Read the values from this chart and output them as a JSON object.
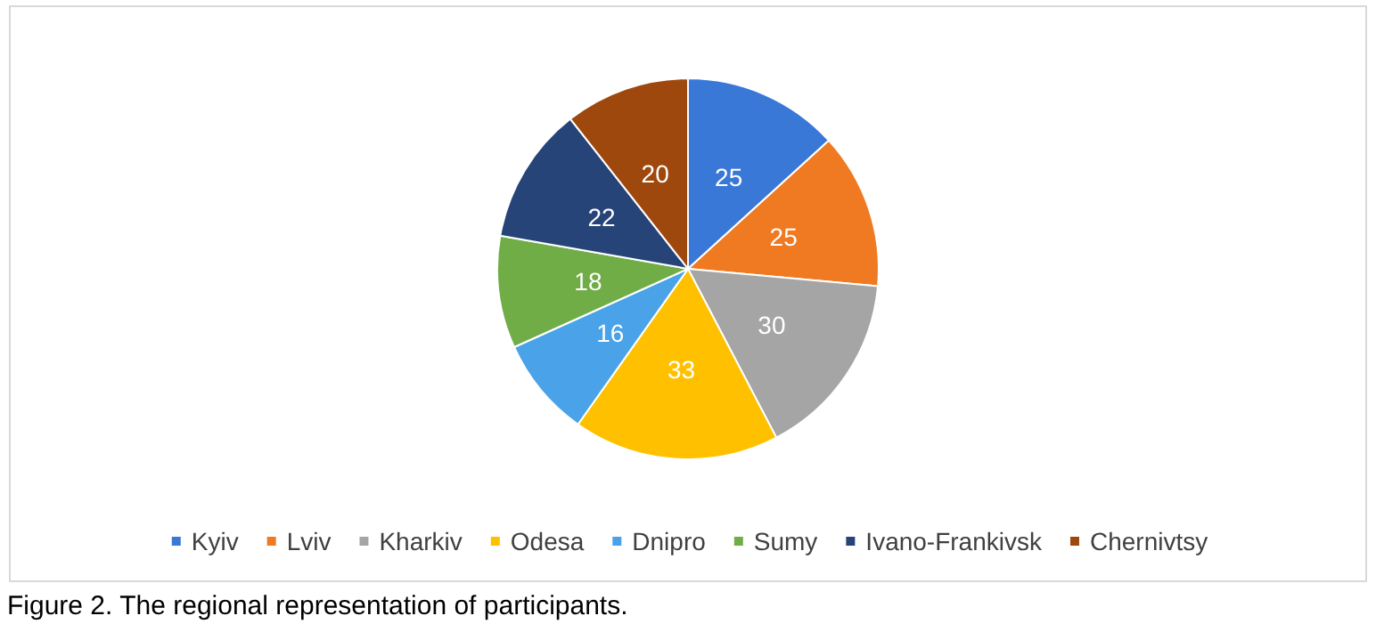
{
  "chart_data": {
    "type": "pie",
    "categories": [
      "Kyiv",
      "Lviv",
      "Kharkiv",
      "Odesa",
      "Dnipro",
      "Sumy",
      "Ivano-Frankivsk",
      "Chernivtsy"
    ],
    "values": [
      25,
      25,
      30,
      33,
      16,
      18,
      22,
      20
    ],
    "colors": [
      "#3a78d8",
      "#f07a22",
      "#a5a5a5",
      "#ffc000",
      "#4aa3e8",
      "#70ad47",
      "#264478",
      "#9e480e"
    ],
    "data_labels": true,
    "legend": "bottom",
    "annotations": [
      "Figure 2. The regional representation of participants."
    ]
  }
}
